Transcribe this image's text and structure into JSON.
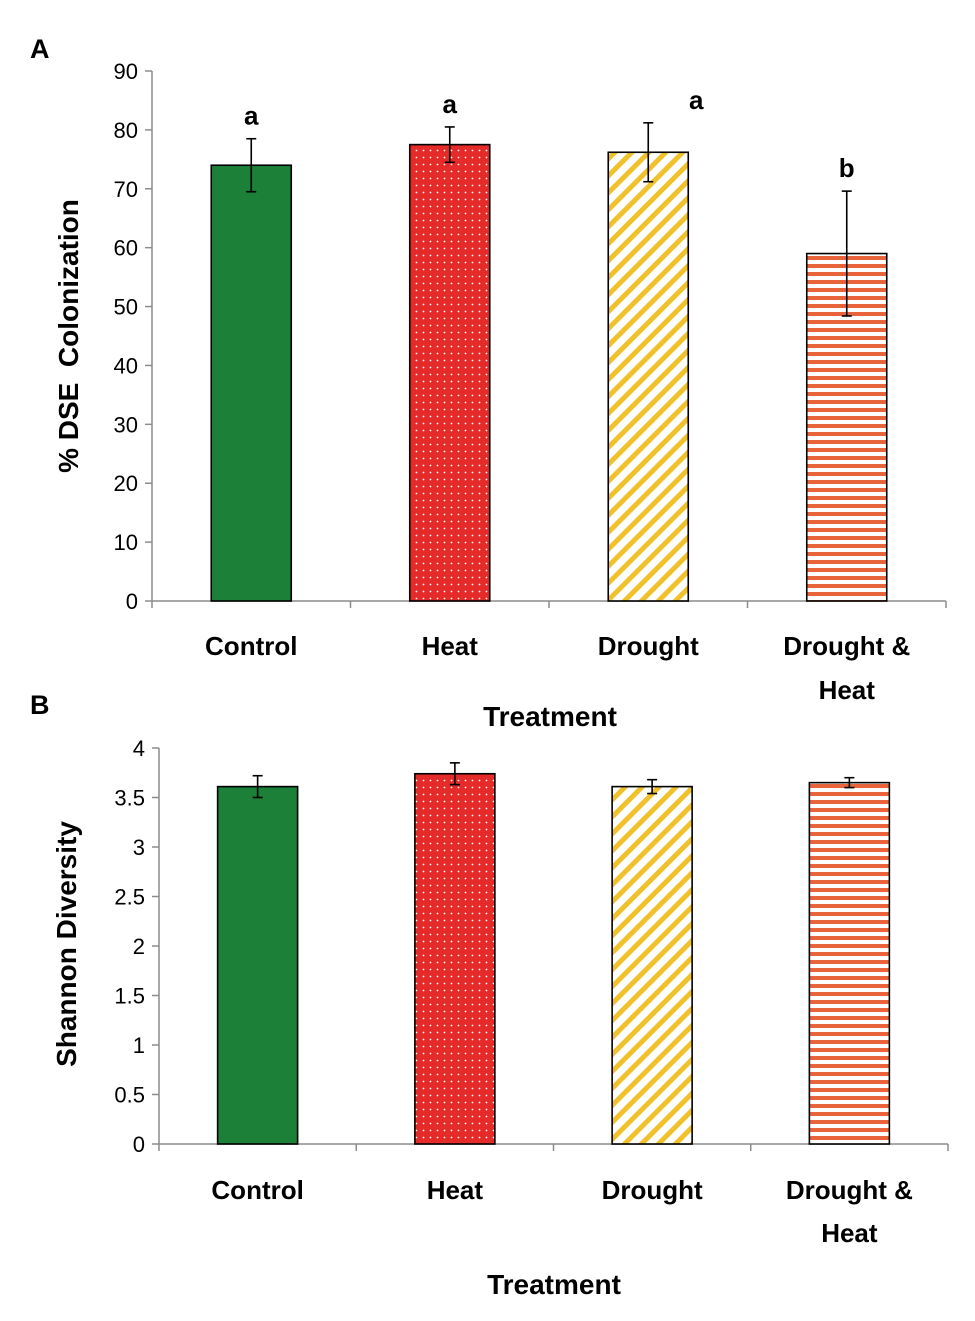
{
  "chart_data": [
    {
      "panel": "A",
      "type": "bar",
      "categories": [
        "Control",
        "Heat",
        "Drought",
        "Drought & Heat"
      ],
      "category_lines": [
        [
          "Control"
        ],
        [
          "Heat"
        ],
        [
          "Drought"
        ],
        [
          "Drought &",
          "Heat"
        ]
      ],
      "values": [
        74,
        77.5,
        76.2,
        59
      ],
      "errors": [
        4.5,
        3,
        5,
        10.6
      ],
      "significance": [
        "a",
        "a",
        "a",
        "b"
      ],
      "ylabel": "% DSE  Colonization",
      "xlabel": "Treatment",
      "ylim": [
        0,
        90
      ],
      "yticks": [
        0,
        10,
        20,
        30,
        40,
        50,
        60,
        70,
        80,
        90
      ],
      "ytick_labels": [
        "0",
        "10",
        "20",
        "30",
        "40",
        "50",
        "60",
        "70",
        "80",
        "90"
      ]
    },
    {
      "panel": "B",
      "type": "bar",
      "categories": [
        "Control",
        "Heat",
        "Drought",
        "Drought & Heat"
      ],
      "category_lines": [
        [
          "Control"
        ],
        [
          "Heat"
        ],
        [
          "Drought"
        ],
        [
          "Drought &",
          "Heat"
        ]
      ],
      "values": [
        3.61,
        3.74,
        3.61,
        3.65
      ],
      "errors": [
        0.11,
        0.11,
        0.07,
        0.05
      ],
      "significance": [],
      "ylabel": "Shannon Diversity",
      "xlabel": "Treatment",
      "ylim": [
        0,
        4
      ],
      "yticks": [
        0,
        0.5,
        1,
        1.5,
        2,
        2.5,
        3,
        3.5,
        4
      ],
      "ytick_labels": [
        "0",
        "0.5",
        "1",
        "1.5",
        "2",
        "2.5",
        "3",
        "3.5",
        "4"
      ]
    }
  ],
  "series_colors": {
    "Control": "#1c8038",
    "Heat": "#e52a2a",
    "Drought": "#f1c12b",
    "Drought & Heat": "#e9643a"
  }
}
